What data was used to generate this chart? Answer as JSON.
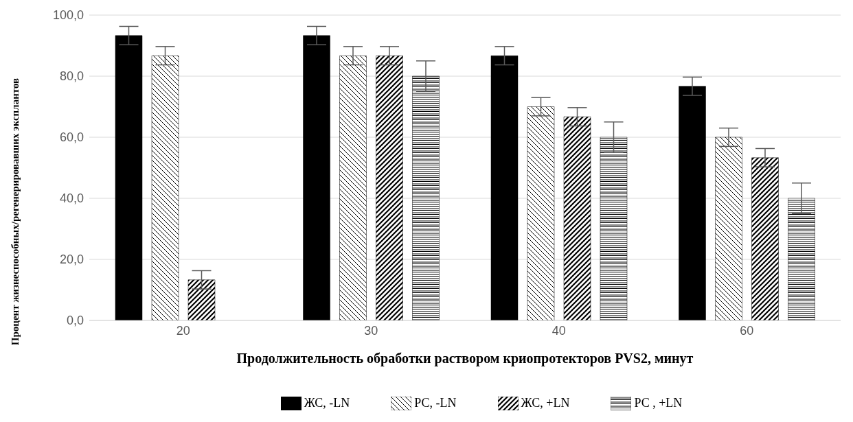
{
  "chart_data": {
    "type": "bar",
    "xlabel": "Продолжительность обработки раствором криопротекторов PVS2, минут",
    "ylabel": "Процент жизнеспособных/регенерировавших эксплантов",
    "categories": [
      "20",
      "30",
      "40",
      "60"
    ],
    "series": [
      {
        "name": "ЖС, -LN",
        "color": "#000000",
        "values": [
          93.3,
          93.3,
          86.7,
          76.7
        ],
        "errors": [
          3,
          3,
          3,
          3
        ]
      },
      {
        "name": "РС, -LN",
        "color": "#000000",
        "values": [
          86.7,
          86.7,
          70,
          60
        ],
        "errors": [
          3,
          3,
          3,
          3
        ]
      },
      {
        "name": "ЖС, +LN",
        "color": "#000000",
        "values": [
          13.3,
          86.7,
          66.7,
          53.3
        ],
        "errors": [
          3,
          3,
          3,
          3
        ]
      },
      {
        "name": "РС , +LN",
        "color": "#000000",
        "values": [
          null,
          80,
          60,
          40
        ],
        "errors": [
          null,
          5,
          5,
          5
        ]
      }
    ],
    "ylim": [
      0,
      100
    ],
    "yticks": [
      {
        "value": 0,
        "label": "0,0"
      },
      {
        "value": 20,
        "label": "20,0"
      },
      {
        "value": 40,
        "label": "40,0"
      },
      {
        "value": 60,
        "label": "60,0"
      },
      {
        "value": 80,
        "label": "80,0"
      },
      {
        "value": 100,
        "label": "100,0"
      }
    ],
    "grid": "y",
    "legend": "bottom"
  }
}
